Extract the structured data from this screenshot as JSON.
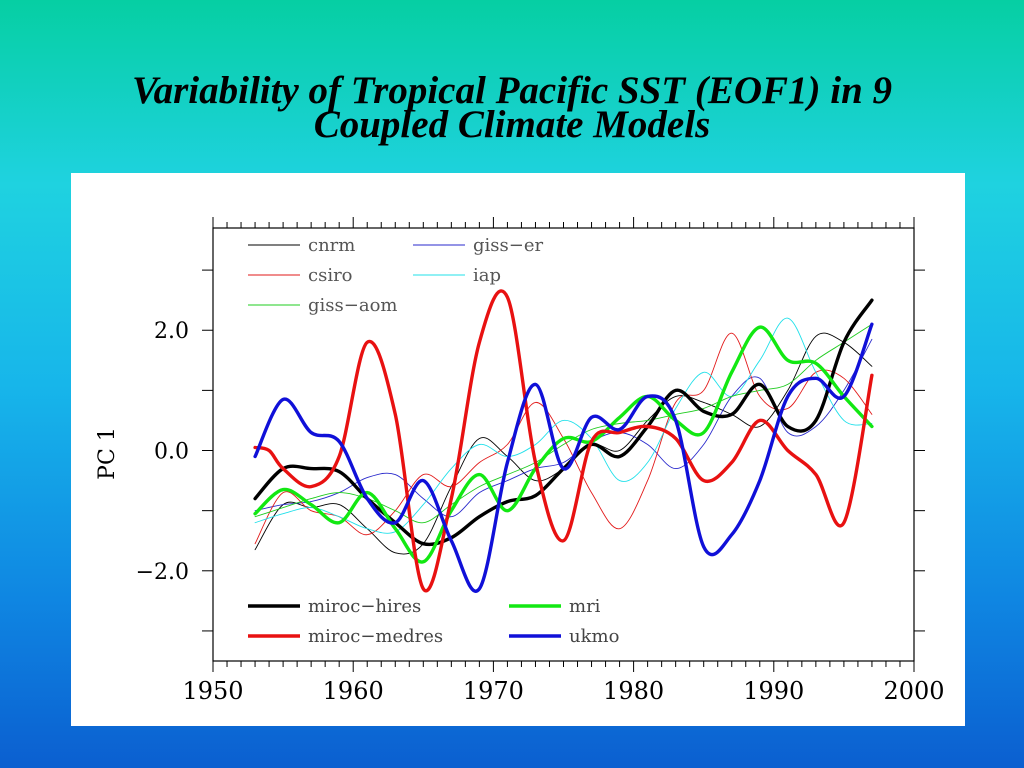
{
  "slide": {
    "title_line1": "Variability of Tropical Pacific SST (EOF1) in 9",
    "title_line2": "Coupled Climate Models"
  },
  "chart_data": {
    "type": "line",
    "title": "",
    "xlabel": "",
    "ylabel": "PC 1",
    "xlim": [
      1950,
      2000
    ],
    "ylim": [
      -3.5,
      3.7
    ],
    "xticks": [
      1950,
      1960,
      1970,
      1980,
      1990,
      2000
    ],
    "xtick_labels": [
      "1950",
      "1960",
      "1970",
      "1980",
      "1990",
      "2000"
    ],
    "yticks": [
      -2,
      0,
      2
    ],
    "ytick_labels": [
      "−2.0",
      "0.0",
      "2.0"
    ],
    "y_minor_step": 1,
    "grid": false,
    "legends": [
      {
        "position": "top-left",
        "entries": [
          "cnrm",
          "giss−er",
          "csiro",
          "iap",
          "giss−aom"
        ]
      },
      {
        "position": "bottom-left",
        "entries": [
          "miroc−hires",
          "mri",
          "miroc−medres",
          "ukmo"
        ]
      }
    ],
    "series": [
      {
        "name": "cnrm",
        "color": "#000000",
        "weight": "thin",
        "x": [
          1953,
          1955,
          1957,
          1959,
          1961,
          1963,
          1965,
          1967,
          1969,
          1971,
          1973,
          1975,
          1977,
          1979,
          1981,
          1983,
          1985,
          1987,
          1989,
          1991,
          1993,
          1995,
          1997
        ],
        "y": [
          -1.65,
          -0.9,
          -0.95,
          -0.9,
          -1.3,
          -1.7,
          -1.55,
          -0.6,
          0.2,
          -0.1,
          -0.5,
          -0.3,
          0.1,
          0.0,
          0.5,
          0.9,
          0.8,
          0.6,
          0.4,
          1.0,
          1.9,
          1.8,
          1.4
        ]
      },
      {
        "name": "giss−er",
        "color": "#2a2acc",
        "weight": "thin",
        "x": [
          1953,
          1955,
          1957,
          1959,
          1961,
          1963,
          1965,
          1967,
          1969,
          1971,
          1973,
          1975,
          1977,
          1979,
          1981,
          1983,
          1985,
          1987,
          1989,
          1991,
          1993,
          1995,
          1997
        ],
        "y": [
          -1.0,
          -0.9,
          -0.85,
          -0.7,
          -0.45,
          -0.4,
          -0.8,
          -1.1,
          -0.7,
          -0.5,
          -0.3,
          -0.2,
          0.15,
          0.3,
          0.1,
          -0.3,
          0.1,
          0.9,
          1.2,
          0.3,
          0.4,
          1.0,
          1.85
        ]
      },
      {
        "name": "csiro",
        "color": "#e21a1a",
        "weight": "thin",
        "x": [
          1953,
          1955,
          1957,
          1959,
          1961,
          1963,
          1965,
          1967,
          1969,
          1971,
          1973,
          1975,
          1977,
          1979,
          1981,
          1983,
          1985,
          1987,
          1989,
          1991,
          1993,
          1995,
          1997
        ],
        "y": [
          -1.55,
          -0.7,
          -1.0,
          -1.1,
          -1.4,
          -1.0,
          -0.4,
          -0.6,
          -0.2,
          0.1,
          0.8,
          0.2,
          -0.7,
          -1.3,
          -0.5,
          0.8,
          1.0,
          1.95,
          0.9,
          0.7,
          1.3,
          1.2,
          0.6
        ]
      },
      {
        "name": "iap",
        "color": "#22e0ea",
        "weight": "thin",
        "x": [
          1953,
          1955,
          1957,
          1959,
          1961,
          1963,
          1965,
          1967,
          1969,
          1971,
          1973,
          1975,
          1977,
          1979,
          1981,
          1983,
          1985,
          1987,
          1989,
          1991,
          1993,
          1995,
          1997
        ],
        "y": [
          -1.2,
          -1.05,
          -0.95,
          -1.1,
          -1.3,
          -1.35,
          -0.9,
          -0.3,
          0.1,
          -0.1,
          0.1,
          0.5,
          0.2,
          -0.5,
          -0.2,
          0.7,
          1.3,
          0.9,
          1.5,
          2.2,
          1.3,
          0.5,
          0.45
        ]
      },
      {
        "name": "giss−aom",
        "color": "#1fcc1f",
        "weight": "thin",
        "x": [
          1953,
          1955,
          1957,
          1959,
          1961,
          1963,
          1965,
          1967,
          1969,
          1971,
          1973,
          1975,
          1977,
          1979,
          1981,
          1983,
          1985,
          1987,
          1989,
          1991,
          1993,
          1995,
          1997
        ],
        "y": [
          -1.1,
          -0.95,
          -0.8,
          -0.7,
          -0.8,
          -1.0,
          -1.2,
          -0.9,
          -0.6,
          -0.4,
          -0.2,
          0.1,
          0.35,
          0.45,
          0.5,
          0.6,
          0.7,
          0.9,
          1.0,
          1.1,
          1.5,
          1.8,
          2.1
        ]
      },
      {
        "name": "miroc−hires",
        "color": "#000000",
        "weight": "thick",
        "x": [
          1953,
          1955,
          1957,
          1959,
          1961,
          1963,
          1965,
          1967,
          1969,
          1971,
          1973,
          1975,
          1977,
          1979,
          1981,
          1983,
          1985,
          1987,
          1989,
          1991,
          1993,
          1995,
          1997
        ],
        "y": [
          -0.8,
          -0.3,
          -0.3,
          -0.35,
          -0.8,
          -1.2,
          -1.55,
          -1.45,
          -1.1,
          -0.85,
          -0.75,
          -0.3,
          0.1,
          -0.1,
          0.4,
          1.0,
          0.65,
          0.6,
          1.1,
          0.4,
          0.5,
          1.8,
          2.5
        ]
      },
      {
        "name": "mri",
        "color": "#12e812",
        "weight": "thick",
        "x": [
          1953,
          1955,
          1957,
          1959,
          1961,
          1963,
          1965,
          1967,
          1969,
          1971,
          1973,
          1975,
          1977,
          1979,
          1981,
          1983,
          1985,
          1987,
          1989,
          1991,
          1993,
          1995,
          1997
        ],
        "y": [
          -1.05,
          -0.65,
          -0.9,
          -1.2,
          -0.7,
          -1.3,
          -1.85,
          -1.0,
          -0.4,
          -1.0,
          -0.3,
          0.2,
          0.15,
          0.55,
          0.9,
          0.5,
          0.3,
          1.3,
          2.05,
          1.5,
          1.45,
          0.9,
          0.4
        ]
      },
      {
        "name": "miroc−medres",
        "color": "#e81111",
        "weight": "thick",
        "x": [
          1953,
          1954,
          1955,
          1957,
          1959,
          1961,
          1963,
          1965,
          1967,
          1969,
          1971,
          1973,
          1975,
          1977,
          1979,
          1981,
          1983,
          1985,
          1987,
          1989,
          1991,
          1993,
          1995,
          1997
        ],
        "y": [
          0.05,
          0.0,
          -0.3,
          -0.6,
          -0.1,
          1.8,
          0.6,
          -2.3,
          -0.8,
          1.8,
          2.55,
          -0.2,
          -1.5,
          0.15,
          0.3,
          0.4,
          0.2,
          -0.5,
          -0.2,
          0.5,
          0.0,
          -0.4,
          -1.2,
          1.25
        ]
      },
      {
        "name": "ukmo",
        "color": "#1010d8",
        "weight": "thick",
        "x": [
          1953,
          1955,
          1957,
          1959,
          1961,
          1963,
          1965,
          1967,
          1969,
          1971,
          1973,
          1975,
          1977,
          1979,
          1981,
          1983,
          1985,
          1987,
          1989,
          1991,
          1993,
          1995,
          1997
        ],
        "y": [
          -0.1,
          0.85,
          0.3,
          0.15,
          -0.8,
          -1.2,
          -0.5,
          -1.5,
          -2.3,
          -0.2,
          1.1,
          -0.3,
          0.55,
          0.35,
          0.9,
          0.5,
          -1.6,
          -1.4,
          -0.5,
          0.9,
          1.2,
          0.9,
          2.1
        ]
      }
    ]
  }
}
